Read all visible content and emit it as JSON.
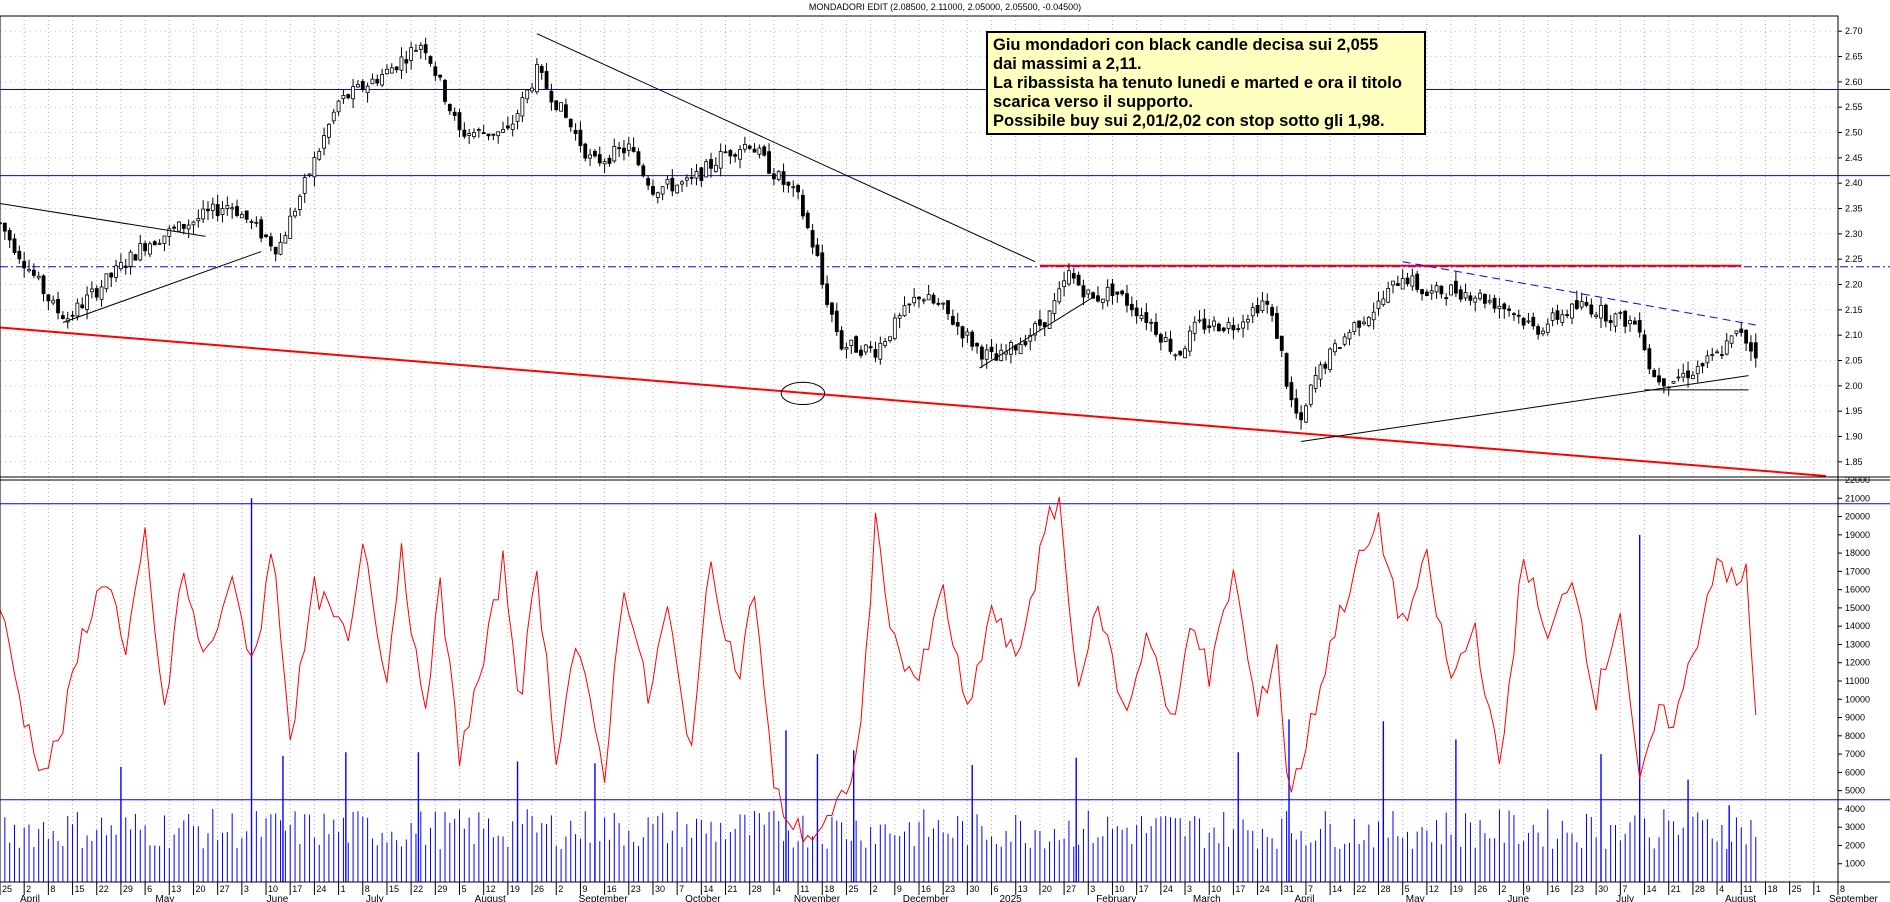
{
  "header": {
    "title": "MONDADORI EDIT (2.08500, 2.11000, 2.05000, 2.05500, -0.04500)"
  },
  "annotation": {
    "lines": [
      "Giu mondadori con black candle decisa sui 2,055",
      "dai massimi a 2,11.",
      "La ribassista ha tenuto lunedi e marted e ora il titolo",
      "scarica verso il supporto.",
      "Possibile buy sui 2,01/2,02 con stop sotto gli 1,98."
    ]
  },
  "chart_data": [
    {
      "type": "candlestick",
      "title": "MONDADORI EDIT (2.08500, 2.11000, 2.05000, 2.05500, -0.04500)",
      "last": {
        "open": 2.085,
        "high": 2.11,
        "low": 2.05,
        "close": 2.055,
        "change": -0.045
      },
      "y_ticks": [
        "1.85",
        "1.90",
        "1.95",
        "2.00",
        "2.05",
        "2.10",
        "2.15",
        "2.20",
        "2.25",
        "2.30",
        "2.35",
        "2.40",
        "2.45",
        "2.50",
        "2.55",
        "2.60",
        "2.65",
        "2.70"
      ],
      "ylim": [
        1.82,
        2.73
      ],
      "date_ticks": [
        "25",
        "2",
        "8",
        "15",
        "22",
        "29",
        "6",
        "13",
        "20",
        "27",
        "3",
        "10",
        "17",
        "24",
        "1",
        "8",
        "15",
        "22",
        "29",
        "5",
        "12",
        "19",
        "26",
        "2",
        "9",
        "16",
        "23",
        "30",
        "7",
        "14",
        "21",
        "28",
        "4",
        "11",
        "18",
        "25",
        "2",
        "9",
        "16",
        "23",
        "30",
        "6",
        "13",
        "20",
        "27",
        "3",
        "10",
        "17",
        "24",
        "3",
        "10",
        "17",
        "24",
        "31",
        "7",
        "14",
        "22",
        "28",
        "5",
        "12",
        "19",
        "26",
        "2",
        "9",
        "16",
        "23",
        "30",
        "7",
        "14",
        "21",
        "28",
        "4",
        "11",
        "18",
        "25",
        "1",
        "8"
      ],
      "months": [
        "April",
        "May",
        "June",
        "July",
        "August",
        "September",
        "October",
        "November",
        "December",
        "2025",
        "February",
        "March",
        "April",
        "May",
        "June",
        "July",
        "August",
        "September"
      ],
      "month_positions": [
        0,
        5.6,
        10.2,
        14.3,
        18.8,
        23.1,
        27.5,
        32,
        36.5,
        40.5,
        44.5,
        48.5,
        52.7,
        57.3,
        61.5,
        66,
        70.5,
        74.8
      ],
      "horizontal_levels": [
        {
          "y": 2.585,
          "color": "#0000ff",
          "style": "solid"
        },
        {
          "y": 2.415,
          "color": "#0000ff",
          "style": "solid"
        },
        {
          "y": 2.235,
          "color": "#0000ff",
          "style": "dash-dot"
        },
        {
          "y": 2.237,
          "color": "#ff0000",
          "style": "solid",
          "from": 43,
          "to": 72
        },
        {
          "y": 1.992,
          "color": "#000000",
          "style": "solid",
          "from": 68,
          "to": 72.3
        }
      ],
      "trendlines": [
        {
          "color": "#ff0000",
          "points": [
            [
              0,
              2.115
            ],
            [
              75.5,
              1.822
            ]
          ]
        },
        {
          "color": "#000000",
          "points": [
            [
              22.2,
              2.695
            ],
            [
              42.8,
              2.245
            ]
          ]
        },
        {
          "color": "#000000",
          "points": [
            [
              0,
              2.36
            ],
            [
              8.5,
              2.295
            ]
          ]
        },
        {
          "color": "#000000",
          "points": [
            [
              2.6,
              2.125
            ],
            [
              10.8,
              2.265
            ]
          ]
        },
        {
          "color": "#000000",
          "points": [
            [
              40.5,
              2.035
            ],
            [
              45.2,
              2.175
            ]
          ]
        },
        {
          "color": "#000000",
          "points": [
            [
              53.8,
              1.89
            ],
            [
              72.3,
              2.02
            ]
          ]
        },
        {
          "color": "#0000ff",
          "points": [
            [
              58,
              2.245
            ],
            [
              72.6,
              2.12
            ]
          ],
          "style": "dashed"
        }
      ],
      "ellipse": {
        "cx": 33.2,
        "cy": 1.985,
        "rx": 0.9,
        "ry": 0.022
      },
      "key_points": [
        [
          0,
          2.32
        ],
        [
          2.3,
          2.15
        ],
        [
          2.8,
          2.135
        ],
        [
          6,
          2.28
        ],
        [
          9.5,
          2.36
        ],
        [
          11.5,
          2.27
        ],
        [
          14,
          2.56
        ],
        [
          16,
          2.62
        ],
        [
          17.5,
          2.68
        ],
        [
          19,
          2.5
        ],
        [
          21,
          2.5
        ],
        [
          22.2,
          2.62
        ],
        [
          23,
          2.56
        ],
        [
          24.5,
          2.44
        ],
        [
          26,
          2.47
        ],
        [
          27,
          2.39
        ],
        [
          28.5,
          2.4
        ],
        [
          30,
          2.46
        ],
        [
          31,
          2.48
        ],
        [
          32,
          2.42
        ],
        [
          33,
          2.37
        ],
        [
          33.6,
          2.28
        ],
        [
          33.8,
          2.25
        ],
        [
          34,
          2.2
        ],
        [
          34.8,
          2.08
        ],
        [
          36.2,
          2.07
        ],
        [
          37,
          2.12
        ],
        [
          38,
          2.18
        ],
        [
          39,
          2.15
        ],
        [
          40.5,
          2.07
        ],
        [
          41.2,
          2.05
        ],
        [
          42.3,
          2.09
        ],
        [
          43.4,
          2.14
        ],
        [
          44.2,
          2.22
        ],
        [
          45.2,
          2.17
        ],
        [
          46,
          2.19
        ],
        [
          47.5,
          2.13
        ],
        [
          48.7,
          2.06
        ],
        [
          49.5,
          2.12
        ],
        [
          51,
          2.12
        ],
        [
          52.3,
          2.17
        ],
        [
          52.9,
          2.09
        ],
        [
          53.3,
          1.98
        ],
        [
          53.8,
          1.92
        ],
        [
          54.3,
          2.01
        ],
        [
          55,
          2.06
        ],
        [
          56,
          2.12
        ],
        [
          57,
          2.16
        ],
        [
          58,
          2.22
        ],
        [
          59,
          2.18
        ],
        [
          60,
          2.19
        ],
        [
          61,
          2.18
        ],
        [
          62.5,
          2.15
        ],
        [
          63.5,
          2.11
        ],
        [
          64.5,
          2.14
        ],
        [
          65.5,
          2.16
        ],
        [
          66.5,
          2.14
        ],
        [
          67.8,
          2.12
        ],
        [
          68.3,
          2.02
        ],
        [
          69,
          2.01
        ],
        [
          70,
          2.03
        ],
        [
          71,
          2.06
        ],
        [
          72,
          2.11
        ],
        [
          72.6,
          2.055
        ]
      ]
    },
    {
      "type": "line+bar",
      "y_ticks": [
        "1000",
        "2000",
        "3000",
        "4000",
        "5000",
        "6000",
        "7000",
        "8000",
        "9000",
        "10000",
        "11000",
        "12000",
        "13000",
        "14000",
        "15000",
        "16000",
        "17000",
        "18000",
        "19000",
        "20000",
        "21000",
        "22000"
      ],
      "ylim": [
        0,
        22000
      ],
      "levels": [
        {
          "y": 20700,
          "color": "#0000ff"
        },
        {
          "y": 4500,
          "color": "#0000ff"
        }
      ],
      "key_points": [
        [
          0,
          15000
        ],
        [
          1,
          9000
        ],
        [
          1.8,
          6000
        ],
        [
          2.5,
          8000
        ],
        [
          3.5,
          14000
        ],
        [
          4.5,
          17000
        ],
        [
          5.2,
          12000
        ],
        [
          6,
          19000
        ],
        [
          6.8,
          9000
        ],
        [
          7.5,
          17000
        ],
        [
          8.5,
          12000
        ],
        [
          9.5,
          16500
        ],
        [
          10.5,
          12000
        ],
        [
          11.3,
          18500
        ],
        [
          12,
          8000
        ],
        [
          13,
          16000
        ],
        [
          14.5,
          13000
        ],
        [
          15,
          19000
        ],
        [
          16,
          11000
        ],
        [
          16.6,
          18500
        ],
        [
          17.5,
          9000
        ],
        [
          18.2,
          16000
        ],
        [
          19,
          7000
        ],
        [
          20,
          12000
        ],
        [
          20.8,
          17500
        ],
        [
          21.5,
          10000
        ],
        [
          22.2,
          17000
        ],
        [
          23,
          7000
        ],
        [
          23.8,
          13000
        ],
        [
          25,
          6000
        ],
        [
          25.8,
          16500
        ],
        [
          26.8,
          10000
        ],
        [
          27.6,
          15000
        ],
        [
          28.5,
          7000
        ],
        [
          29.4,
          17500
        ],
        [
          30.5,
          11000
        ],
        [
          31.2,
          16000
        ],
        [
          32,
          5000
        ],
        [
          32.8,
          3000
        ],
        [
          33.5,
          2500
        ],
        [
          34.5,
          3500
        ],
        [
          35.5,
          7000
        ],
        [
          36.2,
          19500
        ],
        [
          37,
          13000
        ],
        [
          38,
          11000
        ],
        [
          39,
          16000
        ],
        [
          40,
          9000
        ],
        [
          41,
          15000
        ],
        [
          42,
          12000
        ],
        [
          43.3,
          19500
        ],
        [
          43.8,
          21000
        ],
        [
          44.5,
          11000
        ],
        [
          45.5,
          15000
        ],
        [
          46.5,
          9000
        ],
        [
          47.5,
          14000
        ],
        [
          48.5,
          8000
        ],
        [
          49.3,
          15000
        ],
        [
          50,
          11000
        ],
        [
          51,
          17000
        ],
        [
          52,
          9000
        ],
        [
          52.8,
          13000
        ],
        [
          53.3,
          4500
        ],
        [
          54,
          7500
        ],
        [
          55,
          13000
        ],
        [
          56,
          17000
        ],
        [
          57,
          19500
        ],
        [
          58,
          14000
        ],
        [
          59,
          17500
        ],
        [
          60,
          11000
        ],
        [
          61,
          14000
        ],
        [
          62,
          6000
        ],
        [
          63,
          18000
        ],
        [
          64,
          13000
        ],
        [
          65,
          17000
        ],
        [
          66,
          10000
        ],
        [
          67,
          15000
        ],
        [
          67.8,
          5000
        ],
        [
          68.5,
          9000
        ],
        [
          69.3,
          9000
        ],
        [
          70.5,
          15000
        ],
        [
          71,
          18000
        ],
        [
          71.8,
          16000
        ],
        [
          72.2,
          17000
        ],
        [
          72.6,
          9000
        ]
      ],
      "volume_spikes": [
        [
          10.4,
          21000
        ],
        [
          5,
          6300
        ],
        [
          11.7,
          6900
        ],
        [
          14.3,
          7100
        ],
        [
          17.3,
          7100
        ],
        [
          21.4,
          6600
        ],
        [
          24.6,
          6500
        ],
        [
          32.5,
          8300
        ],
        [
          33.8,
          7000
        ],
        [
          35.3,
          7200
        ],
        [
          40.2,
          6400
        ],
        [
          44.5,
          6800
        ],
        [
          51.2,
          7100
        ],
        [
          53.3,
          8900
        ],
        [
          57.2,
          8800
        ],
        [
          60.2,
          7800
        ],
        [
          66.2,
          7000
        ],
        [
          67.8,
          19000
        ],
        [
          69.8,
          5600
        ],
        [
          71.5,
          4200
        ]
      ]
    }
  ]
}
